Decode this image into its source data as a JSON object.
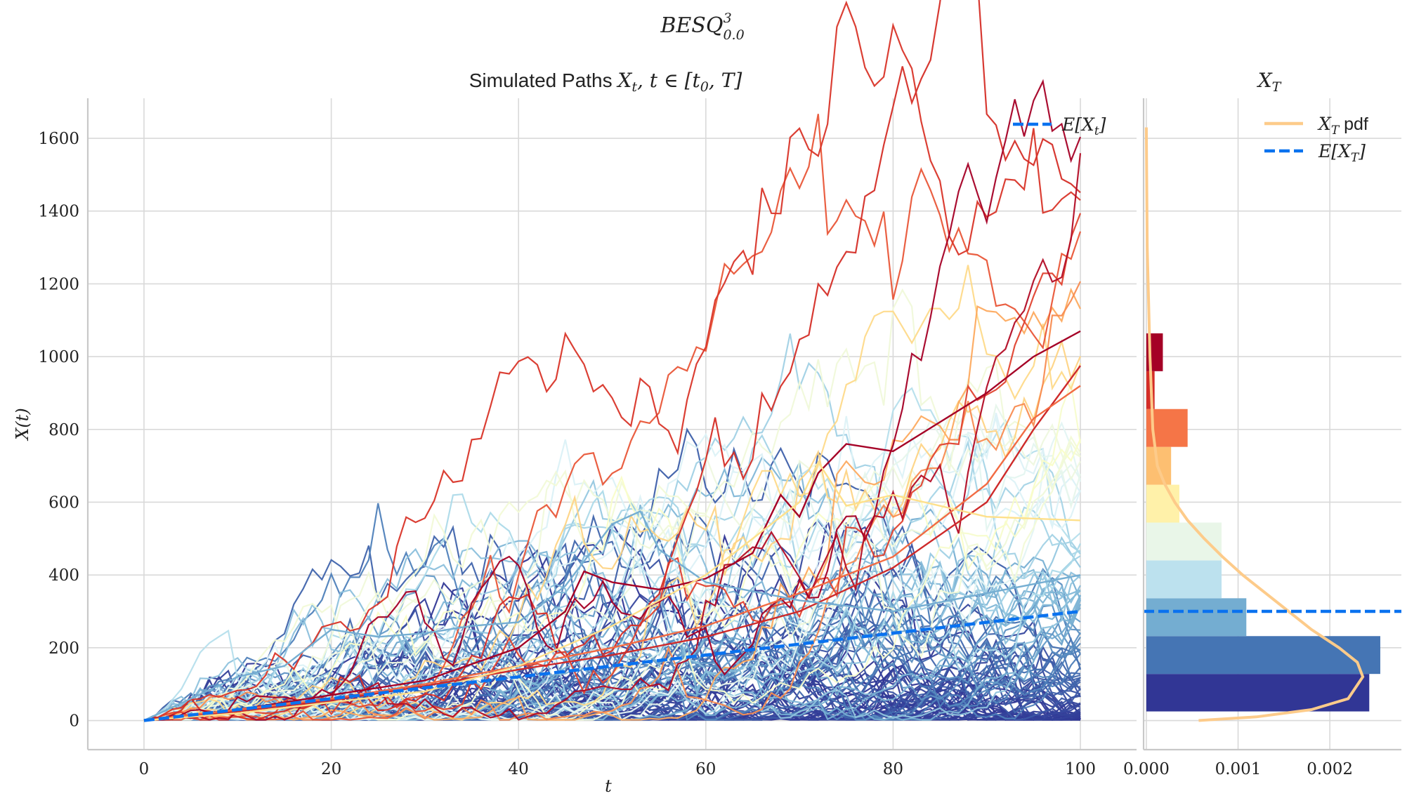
{
  "figure": {
    "suptitle": "BESQ",
    "suptitle_sup": "3",
    "suptitle_sub": "0.0"
  },
  "chart_data": [
    {
      "type": "line",
      "panel": "paths",
      "title_text": "Simulated Paths ",
      "title_math": "X",
      "title_math_sub": "t",
      "title_math_rest": ", t ∈ [t",
      "title_math_rest_sub": "0",
      "title_math_end": ", T]",
      "xlabel": "t",
      "ylabel": "X(t)",
      "xlim": [
        -6,
        106
      ],
      "ylim": [
        -80,
        1710
      ],
      "xticks": [
        0,
        20,
        40,
        60,
        80,
        100
      ],
      "yticks": [
        0,
        200,
        400,
        600,
        800,
        1000,
        1200,
        1400,
        1600
      ],
      "grid": true,
      "legend": {
        "position": "top-right",
        "entries": [
          "E[X_t]"
        ],
        "label_text": "E[X",
        "label_sub": "t",
        "label_end": "]"
      },
      "mean_series": {
        "name": "E[X_t]",
        "color": "#0a72ef",
        "style": "dashed",
        "x": [
          0,
          100
        ],
        "y": [
          0,
          300
        ]
      },
      "colormap": "RdYlBu_r",
      "n_paths": 100,
      "highlighted_paths": [
        {
          "color": "#a50026",
          "x": [
            0,
            10,
            20,
            30,
            40,
            45,
            47,
            50,
            55,
            60,
            65,
            68,
            70,
            72,
            75,
            80,
            85,
            90,
            95,
            100
          ],
          "y": [
            0,
            30,
            70,
            110,
            200,
            300,
            410,
            380,
            360,
            390,
            460,
            620,
            560,
            680,
            760,
            740,
            820,
            900,
            1000,
            1070
          ]
        },
        {
          "color": "#ce2a2a",
          "x": [
            0,
            10,
            20,
            30,
            40,
            50,
            60,
            70,
            80,
            90,
            95,
            100
          ],
          "y": [
            0,
            25,
            55,
            95,
            140,
            180,
            230,
            300,
            420,
            600,
            800,
            975
          ]
        },
        {
          "color": "#f26b43",
          "x": [
            0,
            10,
            20,
            30,
            40,
            50,
            60,
            70,
            80,
            90,
            95,
            100
          ],
          "y": [
            0,
            30,
            60,
            100,
            150,
            200,
            260,
            350,
            450,
            650,
            830,
            920
          ]
        },
        {
          "color": "#75aed2",
          "x": [
            0,
            10,
            15,
            20,
            25,
            30,
            35,
            40,
            45,
            50,
            53,
            55,
            60,
            70,
            80,
            90,
            100
          ],
          "y": [
            0,
            120,
            150,
            250,
            230,
            240,
            260,
            270,
            370,
            540,
            575,
            470,
            380,
            330,
            300,
            350,
            400
          ]
        },
        {
          "color": "#fee08b",
          "x": [
            0,
            10,
            20,
            30,
            40,
            50,
            60,
            70,
            72,
            75,
            80,
            90,
            100
          ],
          "y": [
            0,
            20,
            50,
            80,
            150,
            260,
            400,
            600,
            710,
            590,
            620,
            560,
            550
          ]
        }
      ]
    },
    {
      "type": "bar",
      "panel": "terminal_distribution",
      "orientation": "horizontal",
      "title_math": "X",
      "title_math_sub": "T",
      "xlim": [
        -3e-05,
        0.00278
      ],
      "xticks": [
        0.0,
        0.001,
        0.002
      ],
      "xtick_labels": [
        "0.000",
        "0.001",
        "0.002"
      ],
      "bins": [
        {
          "from": 25,
          "to": 128,
          "density": 0.00243,
          "color": "#313695"
        },
        {
          "from": 128,
          "to": 232,
          "density": 0.00255,
          "color": "#4575b4"
        },
        {
          "from": 232,
          "to": 336,
          "density": 0.00109,
          "color": "#74add1"
        },
        {
          "from": 336,
          "to": 440,
          "density": 0.00082,
          "color": "#bce1ee"
        },
        {
          "from": 440,
          "to": 544,
          "density": 0.00082,
          "color": "#e9f6e8"
        },
        {
          "from": 544,
          "to": 648,
          "density": 0.00036,
          "color": "#fff1a9"
        },
        {
          "from": 648,
          "to": 752,
          "density": 0.00027,
          "color": "#fdbf71"
        },
        {
          "from": 752,
          "to": 856,
          "density": 0.00045,
          "color": "#f57547"
        },
        {
          "from": 856,
          "to": 960,
          "density": 9e-05,
          "color": "#d42d27"
        },
        {
          "from": 960,
          "to": 1064,
          "density": 0.00018,
          "color": "#a50026"
        }
      ],
      "pdf": {
        "color": "#fdcb8a",
        "x": [
          0.00057,
          0.0012,
          0.0018,
          0.0022,
          0.00236,
          0.0023,
          0.0021,
          0.0018,
          0.00155,
          0.0013,
          0.00105,
          0.00083,
          0.00063,
          0.00045,
          0.00031,
          0.0002,
          0.00012,
          7e-05,
          4e-05,
          1e-05,
          0.0
        ],
        "y": [
          0,
          10,
          30,
          60,
          120,
          160,
          200,
          250,
          300,
          350,
          400,
          450,
          500,
          550,
          600,
          650,
          700,
          800,
          1000,
          1300,
          1630
        ]
      },
      "mean_line": {
        "value": 300,
        "color": "#0a72ef",
        "style": "dashed"
      },
      "legend": {
        "position": "top-right",
        "entries": [
          {
            "label_math": "X",
            "label_sub": "T",
            "label_text": " pdf",
            "color": "#fdcb8a",
            "style": "solid"
          },
          {
            "label_math": "E[X",
            "label_sub": "T",
            "label_text": "]",
            "color": "#0a72ef",
            "style": "dashed"
          }
        ]
      }
    }
  ]
}
